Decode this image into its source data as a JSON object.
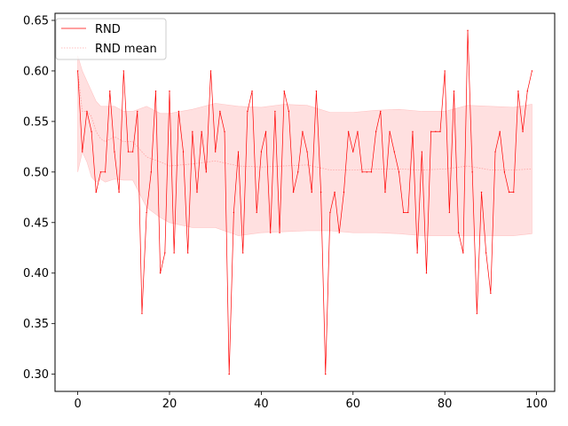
{
  "chart_data": {
    "type": "line",
    "title": "",
    "xlabel": "",
    "ylabel": "",
    "xlim": [
      -4.95,
      103.95
    ],
    "ylim": [
      0.283,
      0.657
    ],
    "x_ticks": [
      0,
      20,
      40,
      60,
      80,
      100
    ],
    "y_ticks": [
      0.3,
      0.35,
      0.4,
      0.45,
      0.5,
      0.55,
      0.6,
      0.65
    ],
    "x_tick_labels": [
      "0",
      "20",
      "40",
      "60",
      "80",
      "100"
    ],
    "y_tick_labels": [
      "0.30",
      "0.35",
      "0.40",
      "0.45",
      "0.50",
      "0.55",
      "0.60",
      "0.65"
    ],
    "grid": false,
    "legend_position": "top-left",
    "colors": {
      "line": "#ff0000",
      "band": "#ffdddd",
      "band_edge": "#ffc4c4"
    },
    "series": [
      {
        "name": "RND",
        "x": [
          0,
          1,
          2,
          3,
          4,
          5,
          6,
          7,
          8,
          9,
          10,
          11,
          12,
          13,
          14,
          15,
          16,
          17,
          18,
          19,
          20,
          21,
          22,
          23,
          24,
          25,
          26,
          27,
          28,
          29,
          30,
          31,
          32,
          33,
          34,
          35,
          36,
          37,
          38,
          39,
          40,
          41,
          42,
          43,
          44,
          45,
          46,
          47,
          48,
          49,
          50,
          51,
          52,
          53,
          54,
          55,
          56,
          57,
          58,
          59,
          60,
          61,
          62,
          63,
          64,
          65,
          66,
          67,
          68,
          69,
          70,
          71,
          72,
          73,
          74,
          75,
          76,
          77,
          78,
          79,
          80,
          81,
          82,
          83,
          84,
          85,
          86,
          87,
          88,
          89,
          90,
          91,
          92,
          93,
          94,
          95,
          96,
          97,
          98,
          99
        ],
        "y": [
          0.6,
          0.52,
          0.56,
          0.54,
          0.48,
          0.5,
          0.5,
          0.58,
          0.52,
          0.48,
          0.6,
          0.52,
          0.52,
          0.56,
          0.36,
          0.46,
          0.5,
          0.58,
          0.4,
          0.42,
          0.58,
          0.42,
          0.56,
          0.52,
          0.42,
          0.54,
          0.48,
          0.54,
          0.5,
          0.6,
          0.52,
          0.56,
          0.54,
          0.3,
          0.46,
          0.52,
          0.42,
          0.56,
          0.58,
          0.46,
          0.52,
          0.54,
          0.44,
          0.56,
          0.44,
          0.58,
          0.56,
          0.48,
          0.5,
          0.54,
          0.52,
          0.48,
          0.58,
          0.48,
          0.3,
          0.46,
          0.48,
          0.44,
          0.48,
          0.54,
          0.52,
          0.54,
          0.5,
          0.5,
          0.5,
          0.54,
          0.56,
          0.48,
          0.54,
          0.52,
          0.5,
          0.46,
          0.46,
          0.54,
          0.42,
          0.52,
          0.4,
          0.54,
          0.54,
          0.54,
          0.6,
          0.46,
          0.58,
          0.44,
          0.42,
          0.64,
          0.5,
          0.36,
          0.48,
          0.42,
          0.38,
          0.52,
          0.54,
          0.5,
          0.48,
          0.48,
          0.58,
          0.54,
          0.58,
          0.6
        ]
      },
      {
        "name": "RND mean",
        "x": [
          0,
          1,
          2,
          3,
          4,
          5,
          6,
          8,
          10,
          12,
          15,
          18,
          20,
          25,
          30,
          35,
          40,
          45,
          50,
          55,
          60,
          65,
          70,
          75,
          80,
          85,
          90,
          95,
          99
        ],
        "y": [
          0.6,
          0.56,
          0.56,
          0.555,
          0.54,
          0.533,
          0.53,
          0.535,
          0.53,
          0.53,
          0.515,
          0.51,
          0.506,
          0.508,
          0.511,
          0.506,
          0.505,
          0.506,
          0.507,
          0.502,
          0.502,
          0.503,
          0.503,
          0.502,
          0.503,
          0.506,
          0.502,
          0.502,
          0.503
        ],
        "band_upper": [
          0.615,
          0.6,
          0.59,
          0.58,
          0.57,
          0.565,
          0.565,
          0.565,
          0.56,
          0.56,
          0.565,
          0.558,
          0.558,
          0.562,
          0.568,
          0.565,
          0.564,
          0.567,
          0.566,
          0.559,
          0.559,
          0.561,
          0.562,
          0.56,
          0.56,
          0.566,
          0.565,
          0.564,
          0.567
        ],
        "band_lower": [
          0.5,
          0.52,
          0.51,
          0.495,
          0.49,
          0.493,
          0.49,
          0.493,
          0.492,
          0.492,
          0.465,
          0.455,
          0.45,
          0.445,
          0.445,
          0.437,
          0.44,
          0.441,
          0.442,
          0.442,
          0.44,
          0.44,
          0.439,
          0.437,
          0.437,
          0.437,
          0.437,
          0.437,
          0.439
        ]
      }
    ],
    "legend": [
      {
        "label": "RND"
      },
      {
        "label": "RND mean"
      }
    ]
  }
}
